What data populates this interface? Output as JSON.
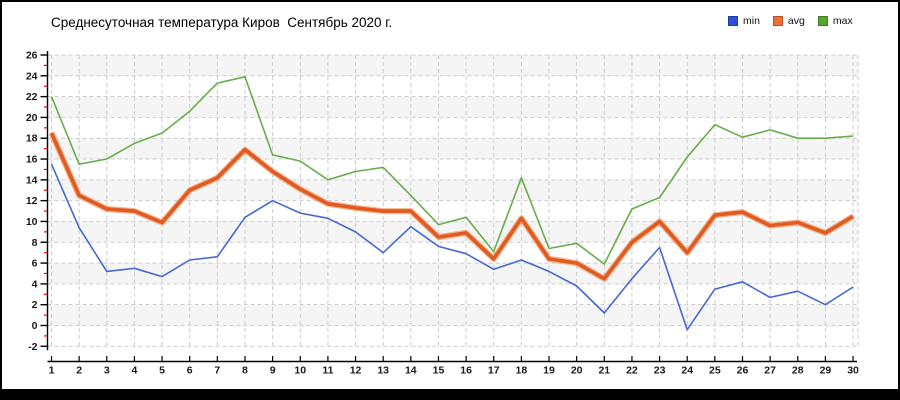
{
  "title": "Среднесуточная температура Киров  Сентябрь 2020 г.",
  "legend": [
    {
      "label": "min",
      "color": "#2b50d9"
    },
    {
      "label": "avg",
      "color": "#ee7033"
    },
    {
      "label": "max",
      "color": "#56a82c"
    }
  ],
  "colors": {
    "min_line": "#4668d2",
    "avg_line": "#e05a22",
    "avg_halo": "#f2a474",
    "max_line": "#68ad4b",
    "grid": "#cbcbcb",
    "band": "#f5f5f5",
    "axis": "#000000",
    "minor_tick": "#cc1111",
    "tick_label": "#1a1a1a",
    "bottom_bar": "#000000"
  },
  "chart_data": {
    "type": "line",
    "title": "Среднесуточная температура Киров  Сентябрь 2020 г.",
    "xlabel": "",
    "ylabel": "",
    "x": [
      1,
      2,
      3,
      4,
      5,
      6,
      7,
      8,
      9,
      10,
      11,
      12,
      13,
      14,
      15,
      16,
      17,
      18,
      19,
      20,
      21,
      22,
      23,
      24,
      25,
      26,
      27,
      28,
      29,
      30
    ],
    "series": [
      {
        "name": "min",
        "values": [
          15.5,
          9.4,
          5.2,
          5.5,
          4.7,
          6.3,
          6.6,
          10.4,
          12.0,
          10.8,
          10.3,
          9.0,
          7.0,
          9.5,
          7.6,
          6.9,
          5.4,
          6.3,
          5.2,
          3.8,
          1.2,
          4.5,
          7.5,
          -0.4,
          3.5,
          4.2,
          2.7,
          3.3,
          2.0,
          3.7
        ]
      },
      {
        "name": "avg",
        "values": [
          18.5,
          12.5,
          11.2,
          11.0,
          9.9,
          13.0,
          14.2,
          16.9,
          14.8,
          13.1,
          11.7,
          11.3,
          11.0,
          11.0,
          8.5,
          8.9,
          6.4,
          10.3,
          6.4,
          6.0,
          4.5,
          8.0,
          10.0,
          7.0,
          10.6,
          10.9,
          9.6,
          9.9,
          8.9,
          10.5
        ]
      },
      {
        "name": "max",
        "values": [
          22.0,
          15.5,
          16.0,
          17.5,
          18.5,
          20.6,
          23.3,
          23.9,
          16.4,
          15.8,
          14.0,
          14.8,
          15.2,
          12.5,
          9.7,
          10.4,
          7.1,
          14.2,
          7.4,
          7.9,
          5.9,
          11.2,
          12.3,
          16.2,
          19.3,
          18.1,
          18.8,
          18.0,
          18.0,
          18.2
        ]
      }
    ],
    "ylim": [
      -2,
      26
    ],
    "yticks": [
      26,
      24,
      22,
      20,
      18,
      16,
      14,
      12,
      10,
      8,
      6,
      4,
      2,
      0,
      -2
    ],
    "grid": true,
    "legend_position": "top-right"
  }
}
